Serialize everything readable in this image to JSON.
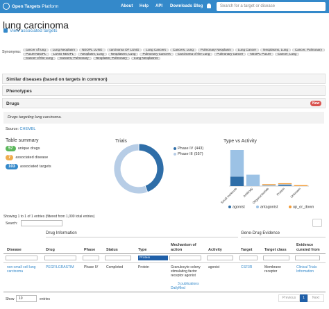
{
  "header": {
    "logo": "Open Targets",
    "logo_sub": "Platform",
    "nav": [
      "About",
      "Help",
      "API",
      "Downloads",
      "Blog"
    ],
    "search_placeholder": "Search for a target or disease"
  },
  "page": {
    "title": "lung carcinoma",
    "link": "View associated targets"
  },
  "synonyms": {
    "label": "Synonyms:",
    "items": [
      "cancer of lung",
      "Lung Neoplasm",
      "NEOPL LUNG",
      "carcinoma OF LUNG",
      "Lung Cancers",
      "Cancers, Lung",
      "Pulmonary Neoplasm",
      "Lung Cancer",
      "Neoplasms, Lung",
      "Cancer, Pulmonary",
      "PULM NEOPL",
      "LUNG NEOPL",
      "Neoplasm, Lung",
      "Neoplasms, Lung",
      "Pulmonary Cancers",
      "Carcinoma of the Lung",
      "Pulmonary Cancer",
      "NEOPL PULM",
      "Cancer, Lung",
      "Cancer of the Lung",
      "Cancers, Pulmonary",
      "Neoplasm, Pulmonary",
      "Lung Neoplasms"
    ]
  },
  "sections": [
    "Similar diseases (based on targets in common)",
    "Phenotypes"
  ],
  "drugs": {
    "title": "Drugs",
    "badge": "New",
    "description": "Drugs targeting lung carcinoma.",
    "source_label": "Source:",
    "source": "CHEMBL"
  },
  "summary": {
    "title": "Table summary",
    "items": [
      {
        "count": "57",
        "label": "unique drugs"
      },
      {
        "count": "7",
        "label": "associated disease"
      },
      {
        "count": "103",
        "label": "associated targets"
      }
    ]
  },
  "chart_data": [
    {
      "type": "pie",
      "title": "Trials",
      "categories": [
        "Phase IV",
        "Phase III"
      ],
      "values": [
        443,
        557
      ],
      "value_labels": [
        "(443)",
        "(557)"
      ],
      "colors": [
        "#2f6ea8",
        "#b7cde6"
      ]
    },
    {
      "type": "bar",
      "title": "Type vs Activity",
      "stacked": true,
      "categories": [
        "Small molecule",
        "Antibody",
        "Oligonucleotide",
        "Protein",
        "Unknown"
      ],
      "series": [
        {
          "name": "agonist",
          "color": "#2f6ea8",
          "values": [
            10,
            0,
            0,
            1,
            0
          ]
        },
        {
          "name": "antagonist",
          "color": "#9cc2e5",
          "values": [
            28,
            12,
            1,
            1,
            0
          ]
        },
        {
          "name": "up_or_down",
          "color": "#f39c37",
          "values": [
            0,
            0,
            1,
            1,
            1
          ]
        }
      ]
    }
  ],
  "table": {
    "showing": "Showing 1 to 1 of 1 entries (filtered from 1,000 total entries)",
    "search_label": "Search:",
    "groups": [
      "Drug Information",
      "Gene-Drug Evidence"
    ],
    "columns": [
      "Disease",
      "Drug",
      "Phase",
      "Status",
      "Type",
      "Mechanism of action",
      "Activity",
      "Target",
      "Target class",
      "Evidence curated from"
    ],
    "filter": "Protein",
    "row": {
      "disease": "non-small cell lung carcinoma",
      "drug": "PEGFILGRASTIM",
      "phase": "Phase IV",
      "status": "Completed",
      "type": "Protein",
      "mechanism": "Granulocyte colony stimulating factor receptor agonist",
      "publications": "3 publications",
      "dailymed": "DailyMed",
      "activity": "agonist",
      "target": "CSF3R",
      "target_class": "Membrane receptor",
      "evidence": "Clinical Trials Information"
    },
    "show": "Show",
    "page_size": "10",
    "entries": "entries",
    "pagination": [
      "Previous",
      "1",
      "Next"
    ]
  }
}
